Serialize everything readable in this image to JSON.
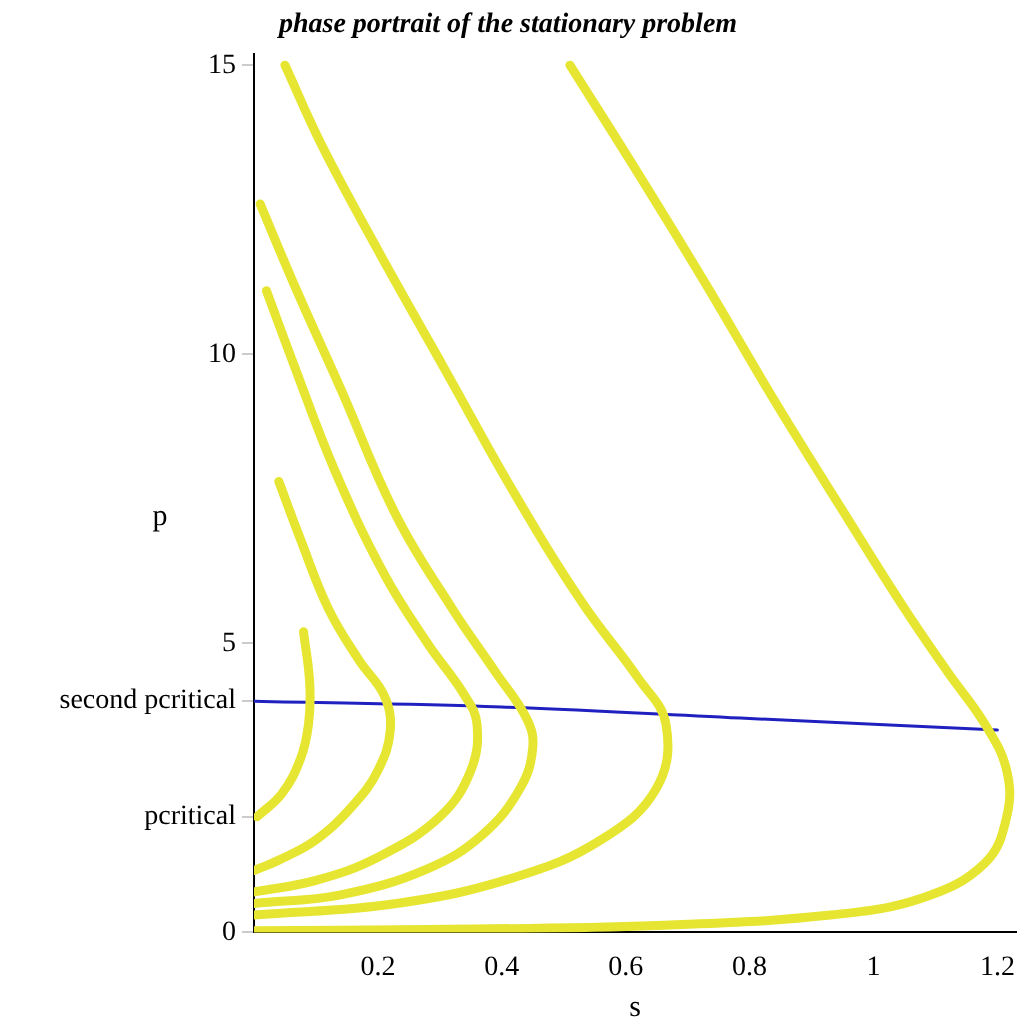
{
  "chart_data": {
    "type": "line",
    "title": "phase portrait of the stationary problem",
    "xlabel": "s",
    "ylabel": "p",
    "xlim": [
      0,
      1.23
    ],
    "xticks": [
      0.2,
      0.4,
      0.6,
      0.8,
      1,
      1.2
    ],
    "ylim": [
      0,
      15.2
    ],
    "yticks": [
      0,
      {
        "value": 2,
        "label": "pcritical"
      },
      {
        "value": 4,
        "label": "second pcritical"
      },
      5,
      10,
      15
    ],
    "grid": false,
    "legend": false,
    "marker": "none",
    "line_style": "solid",
    "series": [
      {
        "color": "#e6e632",
        "x": [
          0.08,
          0.09,
          0.088,
          0.075,
          0.045,
          0.005
        ],
        "values": [
          5.2,
          4.3,
          3.6,
          3.0,
          2.4,
          2.0
        ]
      },
      {
        "color": "#e6e632",
        "x": [
          0.04,
          0.075,
          0.12,
          0.17,
          0.21,
          0.22,
          0.2,
          0.16,
          0.1,
          0.04,
          0.0
        ],
        "values": [
          7.8,
          6.8,
          5.6,
          4.7,
          4.1,
          3.5,
          2.8,
          2.2,
          1.6,
          1.25,
          1.07
        ]
      },
      {
        "color": "#e6e632",
        "x": [
          0.02,
          0.065,
          0.13,
          0.21,
          0.28,
          0.34,
          0.36,
          0.35,
          0.3,
          0.2,
          0.1,
          0.0
        ],
        "values": [
          11.1,
          9.8,
          8.0,
          6.2,
          5.0,
          4.1,
          3.6,
          2.8,
          2.0,
          1.3,
          0.9,
          0.7
        ]
      },
      {
        "color": "#e6e632",
        "x": [
          0.01,
          0.065,
          0.14,
          0.23,
          0.32,
          0.39,
          0.44,
          0.45,
          0.43,
          0.37,
          0.28,
          0.14,
          0.0
        ],
        "values": [
          12.6,
          11.2,
          9.4,
          7.2,
          5.6,
          4.5,
          3.7,
          3.2,
          2.5,
          1.7,
          1.1,
          0.65,
          0.5
        ]
      },
      {
        "color": "#e6e632",
        "x": [
          0.05,
          0.11,
          0.2,
          0.31,
          0.42,
          0.53,
          0.62,
          0.665,
          0.65,
          0.56,
          0.42,
          0.23,
          0.0
        ],
        "values": [
          15,
          13.6,
          11.8,
          9.7,
          7.6,
          5.7,
          4.4,
          3.6,
          2.5,
          1.6,
          0.95,
          0.5,
          0.3
        ]
      },
      {
        "color": "#e6e632",
        "x": [
          0.51,
          0.61,
          0.73,
          0.84,
          0.95,
          1.05,
          1.12,
          1.18,
          1.215,
          1.215,
          1.18,
          1.08,
          0.93,
          0.65,
          0.28,
          0.0
        ],
        "values": [
          15,
          13.3,
          11.2,
          9.2,
          7.3,
          5.6,
          4.5,
          3.6,
          2.8,
          2.0,
          1.2,
          0.6,
          0.3,
          0.12,
          0.05,
          0.03
        ]
      },
      {
        "color": "#2020c0",
        "x": [
          0,
          0.4,
          0.8,
          1.2
        ],
        "values": [
          4.0,
          3.9,
          3.7,
          3.5
        ]
      }
    ]
  }
}
